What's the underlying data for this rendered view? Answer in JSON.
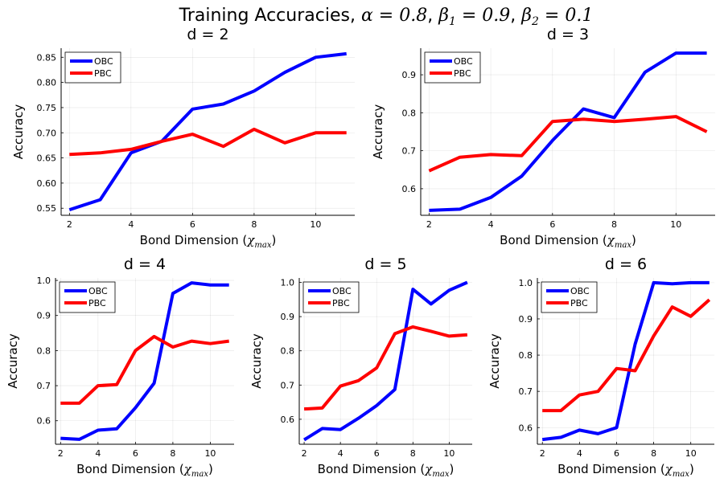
{
  "figure": {
    "title_prefix": "Training Accuracies, ",
    "title_params": [
      {
        "sym": "α",
        "sub": "",
        "eq": " = 0.8"
      },
      {
        "sym": "β",
        "sub": "1",
        "eq": " = 0.9"
      },
      {
        "sym": "β",
        "sub": "2",
        "eq": " = 0.1"
      }
    ]
  },
  "colors": {
    "OBC": "#0000ff",
    "PBC": "#ff0000"
  },
  "chart_data": [
    {
      "type": "line",
      "title": "d = 2",
      "xlabel": "Bond Dimension",
      "xlabel_math": "χ",
      "xlabel_math_sub": "max",
      "ylabel": "Accuracy",
      "x": [
        2,
        3,
        4,
        5,
        6,
        7,
        8,
        9,
        10,
        11
      ],
      "xlim": [
        1.73,
        11.27
      ],
      "ylim": [
        0.536,
        0.868
      ],
      "xticks": [
        2,
        4,
        6,
        8,
        10
      ],
      "yticks": [
        0.55,
        0.6,
        0.65,
        0.7,
        0.75,
        0.8,
        0.85
      ],
      "ytick_labels": [
        "0.55",
        "0.60",
        "0.65",
        "0.70",
        "0.75",
        "0.80",
        "0.85"
      ],
      "grid": true,
      "legend": "top-left",
      "series": [
        {
          "name": "OBC",
          "values": [
            0.547,
            0.567,
            0.66,
            0.683,
            0.747,
            0.757,
            0.783,
            0.82,
            0.85,
            0.857
          ]
        },
        {
          "name": "PBC",
          "values": [
            0.657,
            0.66,
            0.667,
            0.683,
            0.697,
            0.673,
            0.707,
            0.68,
            0.7,
            0.7
          ]
        }
      ]
    },
    {
      "type": "line",
      "title": "d = 3",
      "xlabel": "Bond Dimension",
      "xlabel_math": "χ",
      "xlabel_math_sub": "max",
      "ylabel": "Accuracy",
      "x": [
        2,
        3,
        4,
        5,
        6,
        7,
        8,
        9,
        10,
        11
      ],
      "xlim": [
        1.73,
        11.27
      ],
      "ylim": [
        0.53,
        0.97
      ],
      "xticks": [
        2,
        4,
        6,
        8,
        10
      ],
      "yticks": [
        0.6,
        0.7,
        0.8,
        0.9
      ],
      "ytick_labels": [
        "0.6",
        "0.7",
        "0.8",
        "0.9"
      ],
      "grid": true,
      "legend": "top-left",
      "series": [
        {
          "name": "OBC",
          "values": [
            0.543,
            0.546,
            0.577,
            0.633,
            0.727,
            0.81,
            0.787,
            0.907,
            0.957,
            0.957
          ]
        },
        {
          "name": "PBC",
          "values": [
            0.647,
            0.683,
            0.69,
            0.687,
            0.777,
            0.783,
            0.777,
            0.783,
            0.79,
            0.75
          ]
        }
      ]
    },
    {
      "type": "line",
      "title": "d = 4",
      "xlabel": "Bond Dimension",
      "xlabel_math": "χ",
      "xlabel_math_sub": "max",
      "ylabel": "Accuracy",
      "x": [
        2,
        3,
        4,
        5,
        6,
        7,
        8,
        9,
        10,
        11
      ],
      "xlim": [
        1.73,
        11.27
      ],
      "ylim": [
        0.533,
        1.007
      ],
      "xticks": [
        2,
        4,
        6,
        8,
        10
      ],
      "yticks": [
        0.6,
        0.7,
        0.8,
        0.9,
        1.0
      ],
      "ytick_labels": [
        "0.6",
        "0.7",
        "0.8",
        "0.9",
        "1.0"
      ],
      "grid": true,
      "legend": "top-left",
      "series": [
        {
          "name": "OBC",
          "values": [
            0.55,
            0.547,
            0.573,
            0.577,
            0.637,
            0.707,
            0.963,
            0.993,
            0.987,
            0.987
          ]
        },
        {
          "name": "PBC",
          "values": [
            0.65,
            0.65,
            0.7,
            0.703,
            0.8,
            0.84,
            0.81,
            0.827,
            0.82,
            0.827
          ]
        }
      ]
    },
    {
      "type": "line",
      "title": "d = 5",
      "xlabel": "Bond Dimension",
      "xlabel_math": "χ",
      "xlabel_math_sub": "max",
      "ylabel": "Accuracy",
      "x": [
        2,
        3,
        4,
        5,
        6,
        7,
        8,
        9,
        10,
        11
      ],
      "xlim": [
        1.73,
        11.27
      ],
      "ylim": [
        0.527,
        1.013
      ],
      "xticks": [
        2,
        4,
        6,
        8,
        10
      ],
      "yticks": [
        0.6,
        0.7,
        0.8,
        0.9,
        1.0
      ],
      "ytick_labels": [
        "0.6",
        "0.7",
        "0.8",
        "0.9",
        "1.0"
      ],
      "grid": true,
      "legend": "top-left",
      "series": [
        {
          "name": "OBC",
          "values": [
            0.54,
            0.573,
            0.57,
            0.603,
            0.64,
            0.687,
            0.98,
            0.937,
            0.977,
            1.0
          ]
        },
        {
          "name": "PBC",
          "values": [
            0.63,
            0.633,
            0.697,
            0.713,
            0.75,
            0.85,
            0.87,
            0.857,
            0.843,
            0.847
          ]
        }
      ]
    },
    {
      "type": "line",
      "title": "d = 6",
      "xlabel": "Bond Dimension",
      "xlabel_math": "χ",
      "xlabel_math_sub": "max",
      "ylabel": "Accuracy",
      "x": [
        2,
        3,
        4,
        5,
        6,
        7,
        8,
        9,
        10,
        11
      ],
      "xlim": [
        1.73,
        11.27
      ],
      "ylim": [
        0.554,
        1.013
      ],
      "xticks": [
        2,
        4,
        6,
        8,
        10
      ],
      "yticks": [
        0.6,
        0.7,
        0.8,
        0.9,
        1.0
      ],
      "ytick_labels": [
        "0.6",
        "0.7",
        "0.8",
        "0.9",
        "1.0"
      ],
      "grid": true,
      "legend": "top-left",
      "series": [
        {
          "name": "OBC",
          "values": [
            0.567,
            0.573,
            0.593,
            0.583,
            0.6,
            0.83,
            1.0,
            0.997,
            1.0,
            1.0
          ]
        },
        {
          "name": "PBC",
          "values": [
            0.647,
            0.647,
            0.69,
            0.7,
            0.763,
            0.757,
            0.853,
            0.933,
            0.907,
            0.953
          ]
        }
      ]
    }
  ]
}
